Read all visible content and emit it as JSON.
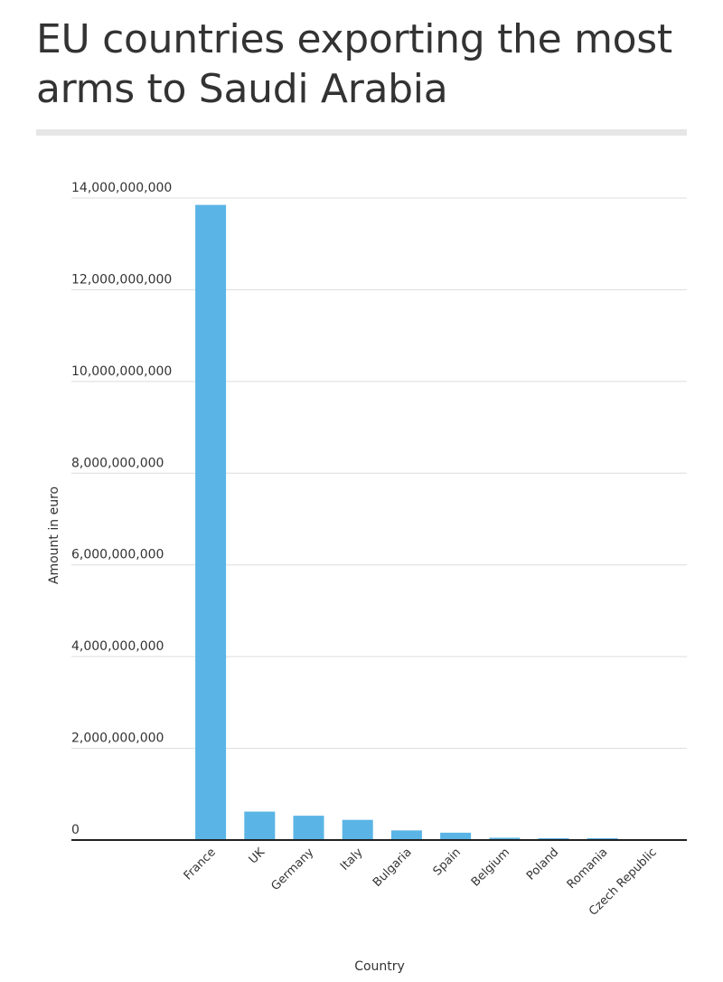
{
  "chart_data": {
    "type": "bar",
    "title": "EU countries exporting the most arms to Saudi Arabia",
    "xlabel": "Country",
    "ylabel": "Amount in euro",
    "categories": [
      "France",
      "UK",
      "Germany",
      "Italy",
      "Bulgaria",
      "Spain",
      "Belgium",
      "Poland",
      "Romania",
      "Czech Republic"
    ],
    "values": [
      13850000000,
      620000000,
      530000000,
      440000000,
      210000000,
      160000000,
      50000000,
      40000000,
      40000000,
      10000000
    ],
    "ylim": [
      0,
      14000000000
    ],
    "yticks": [
      0,
      2000000000,
      4000000000,
      6000000000,
      8000000000,
      10000000000,
      12000000000,
      14000000000
    ],
    "ytick_labels": [
      "0",
      "2,000,000,000",
      "4,000,000,000",
      "6,000,000,000",
      "8,000,000,000",
      "10,000,000,000",
      "12,000,000,000",
      "14,000,000,000"
    ],
    "bar_color": "#5ab4e5",
    "grid": true,
    "legend": "none"
  }
}
